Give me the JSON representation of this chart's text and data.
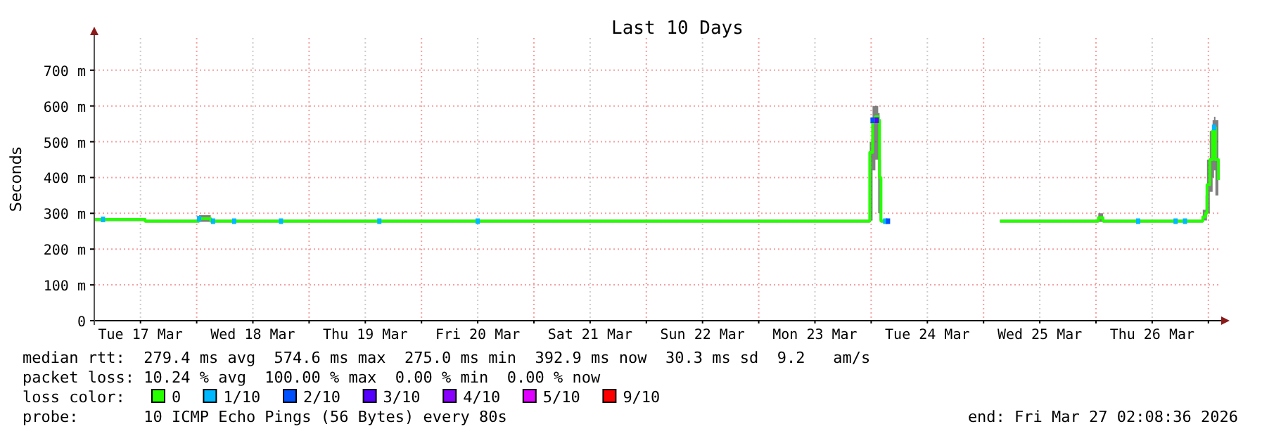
{
  "chart_data": {
    "type": "line",
    "title": "Last 10 Days",
    "ylabel": "Seconds",
    "legend_title": "loss color:",
    "legend": "bottom",
    "grid": true,
    "xlim": [
      "2026-03-17T02:08",
      "2026-03-27T02:08"
    ],
    "xticks": [
      {
        "value": "2026-03-17T12:00",
        "label": "Tue 17 Mar"
      },
      {
        "value": "2026-03-18T00:00",
        "label": null
      },
      {
        "value": "2026-03-18T12:00",
        "label": "Wed 18 Mar"
      },
      {
        "value": "2026-03-19T00:00",
        "label": null
      },
      {
        "value": "2026-03-19T12:00",
        "label": "Thu 19 Mar"
      },
      {
        "value": "2026-03-20T00:00",
        "label": null
      },
      {
        "value": "2026-03-20T12:00",
        "label": "Fri 20 Mar"
      },
      {
        "value": "2026-03-21T00:00",
        "label": null
      },
      {
        "value": "2026-03-21T12:00",
        "label": "Sat 21 Mar"
      },
      {
        "value": "2026-03-22T00:00",
        "label": null
      },
      {
        "value": "2026-03-22T12:00",
        "label": "Sun 22 Mar"
      },
      {
        "value": "2026-03-23T00:00",
        "label": null
      },
      {
        "value": "2026-03-23T12:00",
        "label": "Mon 23 Mar"
      },
      {
        "value": "2026-03-24T00:00",
        "label": null
      },
      {
        "value": "2026-03-24T12:00",
        "label": "Tue 24 Mar"
      },
      {
        "value": "2026-03-25T00:00",
        "label": null
      },
      {
        "value": "2026-03-25T12:00",
        "label": "Wed 25 Mar"
      },
      {
        "value": "2026-03-26T00:00",
        "label": null
      },
      {
        "value": "2026-03-26T12:00",
        "label": "Thu 26 Mar"
      },
      {
        "value": "2026-03-27T00:00",
        "label": null
      }
    ],
    "ylim": [
      0,
      790
    ],
    "yticks": [
      0,
      {
        "value": 100,
        "label": "100 m"
      },
      {
        "value": 200,
        "label": "200 m"
      },
      {
        "value": 300,
        "label": "300 m"
      },
      {
        "value": 400,
        "label": "400 m"
      },
      {
        "value": 500,
        "label": "500 m"
      },
      {
        "value": 600,
        "label": "600 m"
      },
      {
        "value": 700,
        "label": "700 m"
      }
    ],
    "series": [
      {
        "name": "0",
        "color": "#26ff00",
        "x": [
          "2026-03-17T02:08",
          "2026-03-17T06:00",
          "2026-03-17T12:00",
          "2026-03-17T13:00",
          "2026-03-17T18:00",
          "2026-03-18T00:00",
          "2026-03-18T00:30",
          "2026-03-18T03:00",
          "2026-03-18T12:00",
          "2026-03-19T00:00",
          "2026-03-20T00:00",
          "2026-03-21T00:00",
          "2026-03-22T00:00",
          "2026-03-23T00:00",
          "2026-03-23T23:30",
          "2026-03-23T23:42",
          "2026-03-24T00:18",
          "2026-03-24T00:54",
          "2026-03-24T01:30",
          "2026-03-24T01:48",
          "2026-03-24T02:06",
          "2026-03-24T03:36",
          "2026-03-24T04:00",
          "2026-03-25T03:30",
          "2026-03-25T12:00",
          "2026-03-26T00:00",
          "2026-03-26T00:30",
          "2026-03-26T01:30",
          "2026-03-26T12:00",
          "2026-03-26T22:48",
          "2026-03-26T23:24",
          "2026-03-26T23:42",
          "2026-03-27T00:18",
          "2026-03-27T00:54",
          "2026-03-27T01:12",
          "2026-03-27T01:30",
          "2026-03-27T02:08"
        ],
        "values": [
          283,
          283,
          283,
          278,
          278,
          278,
          285,
          278,
          278,
          278,
          278,
          278,
          278,
          278,
          278,
          470,
          560,
          570,
          560,
          400,
          278,
          278,
          null,
          278,
          278,
          278,
          288,
          278,
          278,
          290,
          300,
          380,
          450,
          530,
          540,
          450,
          393
        ],
        "lower": [
          278,
          278,
          278,
          274,
          274,
          274,
          276,
          274,
          274,
          274,
          274,
          274,
          274,
          274,
          274,
          280,
          420,
          450,
          300,
          280,
          274,
          274,
          null,
          274,
          274,
          274,
          276,
          274,
          274,
          280,
          280,
          300,
          360,
          400,
          420,
          350,
          340
        ],
        "upper": [
          286,
          286,
          286,
          282,
          282,
          282,
          295,
          282,
          282,
          282,
          282,
          282,
          282,
          282,
          282,
          500,
          600,
          600,
          580,
          450,
          282,
          282,
          null,
          282,
          282,
          282,
          300,
          282,
          282,
          310,
          350,
          450,
          530,
          560,
          570,
          560,
          500
        ]
      },
      {
        "name": "1/10",
        "type": "scatter",
        "marker": "square",
        "color": "#00b8ff",
        "x": [
          "2026-03-17T04:00",
          "2026-03-18T00:30",
          "2026-03-18T03:30",
          "2026-03-18T08:00",
          "2026-03-18T18:00",
          "2026-03-19T15:00",
          "2026-03-20T12:00",
          "2026-03-24T03:00",
          "2026-03-26T09:00",
          "2026-03-26T17:00",
          "2026-03-26T19:00",
          "2026-03-27T01:12"
        ],
        "values": [
          283,
          285,
          278,
          278,
          278,
          278,
          278,
          278,
          278,
          278,
          278,
          540
        ]
      },
      {
        "name": "2/10",
        "type": "scatter",
        "marker": "square",
        "color": "#0050ff",
        "x": [
          "2026-03-24T00:18",
          "2026-03-24T03:36"
        ],
        "values": [
          560,
          278
        ]
      },
      {
        "name": "3/10",
        "type": "scatter",
        "marker": "square",
        "color": "#5500ff",
        "x": [
          "2026-03-24T01:12"
        ],
        "values": [
          560
        ]
      },
      {
        "name": "4/10",
        "type": "scatter",
        "color": "#8a00ff"
      },
      {
        "name": "5/10",
        "type": "scatter",
        "color": "#e000ff"
      },
      {
        "name": "9/10",
        "type": "scatter",
        "color": "#ff0000"
      }
    ],
    "annotations": [
      "median rtt:  279.4 ms avg  574.6 ms max  275.0 ms min  392.9 ms now  30.3 ms sd  9.2   am/s",
      "packet loss: 10.24 % avg  100.00 % max  0.00 % min  0.00 % now",
      "probe:       10 ICMP Echo Pings (56 Bytes) every 80s",
      "end: Fri Mar 27 02:08:36 2026"
    ]
  }
}
